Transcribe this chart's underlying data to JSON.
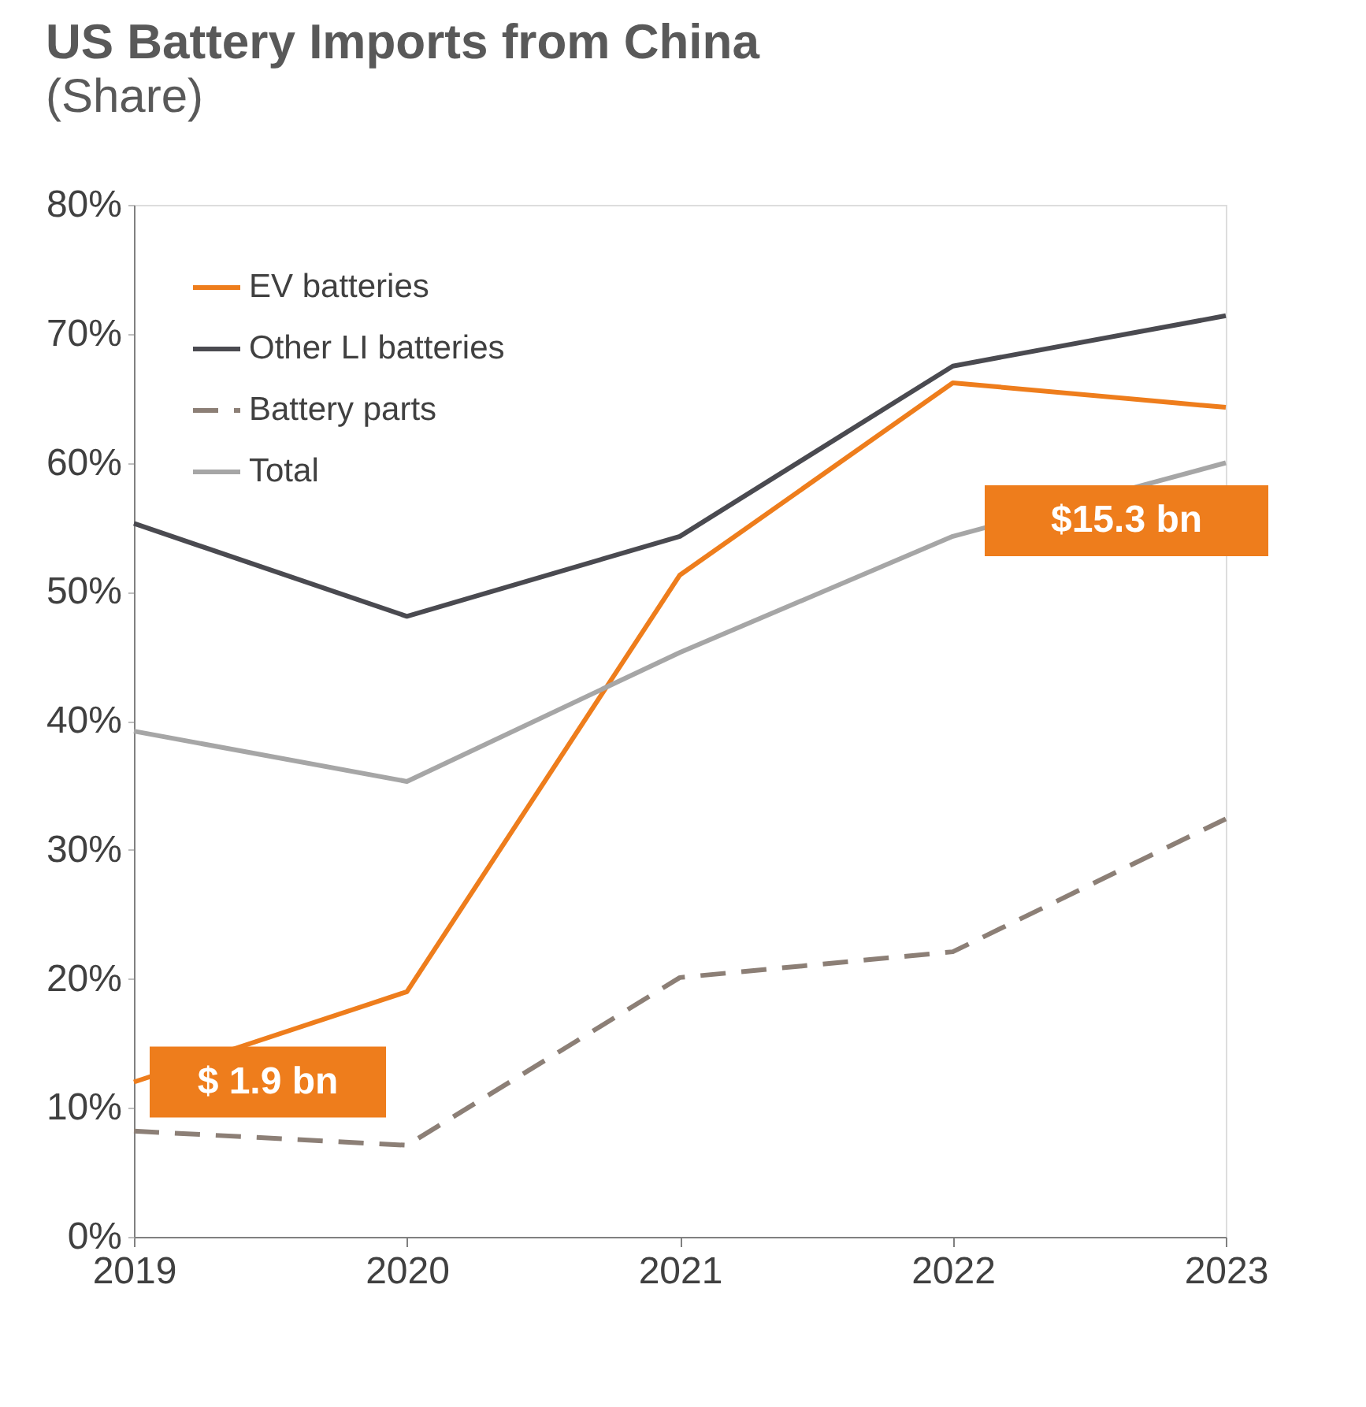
{
  "chart_data": {
    "type": "line",
    "title": "US Battery Imports from China",
    "subtitle": "(Share)",
    "categories": [
      "2019",
      "2020",
      "2021",
      "2022",
      "2023"
    ],
    "series": [
      {
        "name": "EV batteries",
        "color": "#ee7d1c",
        "line_style": "solid",
        "values": [
          12,
          19,
          51.3,
          66.2,
          64.3
        ]
      },
      {
        "name": "Other LI batteries",
        "color": "#4a4a50",
        "line_style": "solid",
        "values": [
          55.3,
          48.1,
          54.3,
          67.5,
          71.4
        ]
      },
      {
        "name": "Battery parts",
        "color": "#8c7f76",
        "line_style": "dashed",
        "values": [
          8.2,
          7.1,
          20.1,
          22.1,
          32.4
        ]
      },
      {
        "name": "Total",
        "color": "#a6a6a6",
        "line_style": "solid",
        "values": [
          39.2,
          35.3,
          45.3,
          54.3,
          60
        ]
      }
    ],
    "ylim": [
      0,
      80
    ],
    "yticks": [
      {
        "value": 0,
        "label": "0%"
      },
      {
        "value": 10,
        "label": "10%"
      },
      {
        "value": 20,
        "label": "20%"
      },
      {
        "value": 30,
        "label": "30%"
      },
      {
        "value": 40,
        "label": "40%"
      },
      {
        "value": 50,
        "label": "50%"
      },
      {
        "value": 60,
        "label": "60%"
      },
      {
        "value": 70,
        "label": "70%"
      },
      {
        "value": 80,
        "label": "80%"
      }
    ],
    "annotations": [
      {
        "text": "$ 1.9 bn",
        "x": "2019",
        "y": 12
      },
      {
        "text": "$15.3 bn",
        "x": "2023",
        "y": 64.3
      }
    ],
    "grid": false,
    "legend": "top left",
    "marker": "none"
  }
}
